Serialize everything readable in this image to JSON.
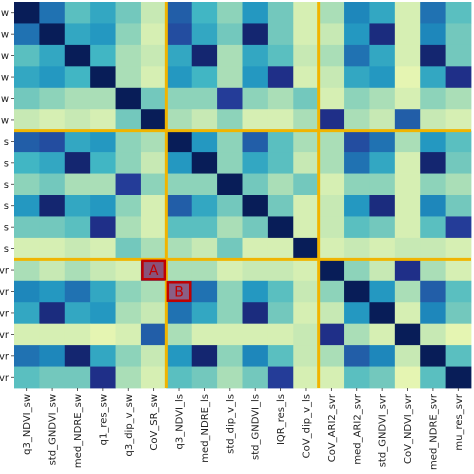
{
  "chart_data": {
    "type": "heatmap",
    "title": "",
    "xlabel": "",
    "ylabel": "",
    "colormap": [
      "#ffffd9",
      "#edf8b1",
      "#c7e9b4",
      "#7fcdbb",
      "#41b6c4",
      "#1d91c0",
      "#225ea8",
      "#253494",
      "#081d58"
    ],
    "value_range": [
      0,
      1
    ],
    "divider_color": "#f0b400",
    "x_categories": [
      "q3_NDVI_sw",
      "std_GNDVI_sw",
      "med_NDRE_sw",
      "q1_res_sw",
      "q3_dip_v_sw",
      "CoV_SR_sw",
      "q3_NDVI_ls",
      "med_NDRE_ls",
      "std_dip_v_ls",
      "std_GNDVI_ls",
      "IQR_res_ls",
      "CoV_dip_v_ls",
      "CoV_ARI2_svr",
      "med_ARI2_svr",
      "std_GNDVI_svr",
      "CoV_NDVI_svr",
      "med_NDRE_svr",
      "mu_res_svr"
    ],
    "y_categories": [
      "w",
      "w",
      "w",
      "w",
      "w",
      "w",
      "s",
      "s",
      "s",
      "s",
      "s",
      "s",
      "vr",
      "vr",
      "vr",
      "vr",
      "vr",
      "vr"
    ],
    "group_boundaries": [
      6,
      12
    ],
    "values": [
      [
        1.0,
        0.7,
        0.45,
        0.55,
        0.4,
        0.25,
        0.75,
        0.5,
        0.35,
        0.6,
        0.4,
        0.2,
        0.3,
        0.65,
        0.55,
        0.2,
        0.7,
        0.45
      ],
      [
        0.7,
        1.0,
        0.55,
        0.6,
        0.35,
        0.2,
        0.8,
        0.55,
        0.4,
        0.95,
        0.4,
        0.2,
        0.25,
        0.6,
        0.92,
        0.2,
        0.65,
        0.4
      ],
      [
        0.45,
        0.55,
        1.0,
        0.5,
        0.3,
        0.25,
        0.55,
        0.95,
        0.3,
        0.55,
        0.45,
        0.25,
        0.3,
        0.7,
        0.55,
        0.2,
        0.95,
        0.4
      ],
      [
        0.55,
        0.6,
        0.5,
        1.0,
        0.3,
        0.2,
        0.6,
        0.5,
        0.3,
        0.6,
        0.9,
        0.2,
        0.25,
        0.55,
        0.6,
        0.15,
        0.55,
        0.9
      ],
      [
        0.4,
        0.35,
        0.3,
        0.3,
        1.0,
        0.4,
        0.35,
        0.35,
        0.85,
        0.35,
        0.3,
        0.4,
        0.2,
        0.35,
        0.3,
        0.2,
        0.35,
        0.3
      ],
      [
        0.25,
        0.2,
        0.25,
        0.2,
        0.4,
        1.0,
        0.3,
        0.25,
        0.35,
        0.2,
        0.2,
        0.3,
        0.9,
        0.3,
        0.25,
        0.75,
        0.25,
        0.2
      ],
      [
        0.75,
        0.8,
        0.55,
        0.6,
        0.35,
        0.3,
        1.0,
        0.6,
        0.35,
        0.75,
        0.45,
        0.3,
        0.3,
        0.8,
        0.7,
        0.3,
        0.6,
        0.45
      ],
      [
        0.5,
        0.55,
        0.95,
        0.5,
        0.35,
        0.25,
        0.6,
        1.0,
        0.35,
        0.55,
        0.45,
        0.25,
        0.3,
        0.7,
        0.55,
        0.2,
        0.95,
        0.4
      ],
      [
        0.35,
        0.4,
        0.3,
        0.3,
        0.85,
        0.35,
        0.35,
        0.35,
        1.0,
        0.4,
        0.3,
        0.4,
        0.2,
        0.35,
        0.35,
        0.2,
        0.35,
        0.3
      ],
      [
        0.6,
        0.95,
        0.55,
        0.6,
        0.35,
        0.2,
        0.75,
        0.55,
        0.4,
        1.0,
        0.4,
        0.2,
        0.25,
        0.6,
        0.92,
        0.2,
        0.65,
        0.4
      ],
      [
        0.4,
        0.4,
        0.45,
        0.9,
        0.3,
        0.2,
        0.45,
        0.45,
        0.3,
        0.4,
        1.0,
        0.2,
        0.25,
        0.45,
        0.4,
        0.2,
        0.45,
        0.85
      ],
      [
        0.2,
        0.2,
        0.25,
        0.2,
        0.4,
        0.3,
        0.3,
        0.25,
        0.4,
        0.2,
        0.2,
        1.0,
        0.2,
        0.25,
        0.2,
        0.25,
        0.25,
        0.2
      ],
      [
        0.3,
        0.25,
        0.3,
        0.25,
        0.2,
        0.9,
        0.3,
        0.3,
        0.2,
        0.25,
        0.25,
        0.2,
        1.0,
        0.35,
        0.25,
        0.9,
        0.3,
        0.2
      ],
      [
        0.65,
        0.6,
        0.7,
        0.55,
        0.35,
        0.3,
        0.8,
        0.7,
        0.35,
        0.6,
        0.45,
        0.25,
        0.35,
        1.0,
        0.6,
        0.3,
        0.75,
        0.45
      ],
      [
        0.55,
        0.92,
        0.55,
        0.6,
        0.3,
        0.25,
        0.7,
        0.55,
        0.35,
        0.92,
        0.4,
        0.2,
        0.25,
        0.6,
        1.0,
        0.2,
        0.65,
        0.4
      ],
      [
        0.2,
        0.2,
        0.2,
        0.15,
        0.2,
        0.75,
        0.3,
        0.2,
        0.2,
        0.2,
        0.2,
        0.25,
        0.9,
        0.3,
        0.2,
        1.0,
        0.25,
        0.15
      ],
      [
        0.7,
        0.65,
        0.95,
        0.55,
        0.35,
        0.25,
        0.6,
        0.95,
        0.35,
        0.65,
        0.45,
        0.25,
        0.3,
        0.75,
        0.65,
        0.25,
        1.0,
        0.45
      ],
      [
        0.45,
        0.4,
        0.4,
        0.9,
        0.3,
        0.2,
        0.45,
        0.4,
        0.3,
        0.4,
        0.85,
        0.2,
        0.2,
        0.45,
        0.4,
        0.15,
        0.45,
        1.0
      ]
    ],
    "annotations": [
      {
        "label": "A",
        "row": 12,
        "col": 5,
        "edge_color": "#c00000",
        "fill_color": "#e07070",
        "text_color": "#c00000"
      },
      {
        "label": "B",
        "row": 13,
        "col": 6,
        "edge_color": "#c00000",
        "fill_color": "#e07070",
        "text_color": "#c00000"
      }
    ]
  }
}
